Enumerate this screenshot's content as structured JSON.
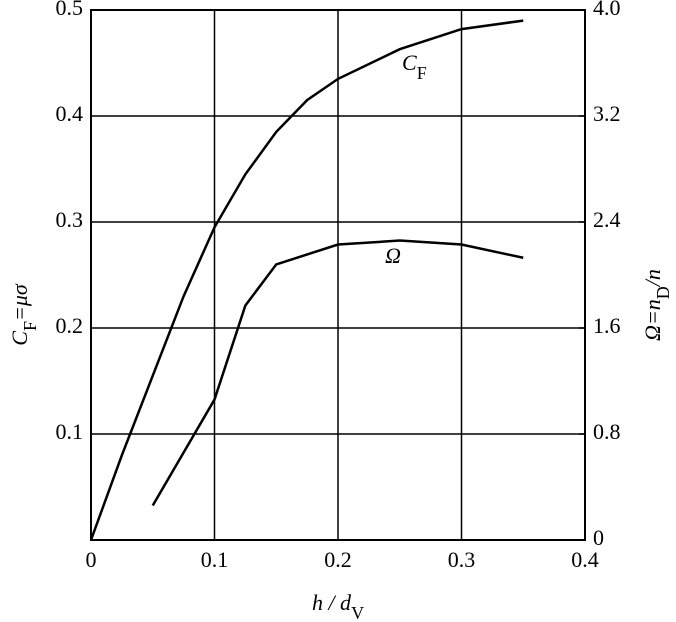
{
  "chart_data": {
    "type": "line",
    "xlabel": [
      "h / d",
      "V"
    ],
    "ylabel": [
      "C",
      "F",
      "=μσ"
    ],
    "y2label": [
      "Ω=n",
      "D",
      "/n"
    ],
    "xlim": [
      0,
      0.4
    ],
    "xticks": [
      0,
      0.1,
      0.2,
      0.3,
      0.4
    ],
    "ylim": [
      0,
      0.5
    ],
    "yticks": [
      0.1,
      0.2,
      0.3,
      0.4,
      0.5
    ],
    "y2lim": [
      0,
      4
    ],
    "y2ticks": [
      0,
      0.8,
      1.6,
      2.4,
      3.2,
      {
        "value": 4,
        "label": "4.0"
      }
    ],
    "grid": true,
    "series": [
      {
        "label": [
          "C",
          "F"
        ],
        "color": "#000000",
        "x": [
          0,
          0.025,
          0.05,
          0.075,
          0.1,
          0.125,
          0.15,
          0.175,
          0.2,
          0.25,
          0.3,
          0.35
        ],
        "values": [
          0,
          0.08,
          0.155,
          0.23,
          0.295,
          0.345,
          0.385,
          0.415,
          0.435,
          0.463,
          0.482,
          0.49
        ]
      },
      {
        "label": [
          "Ω"
        ],
        "color": "#000000",
        "axis": "y2",
        "x": [
          0.05,
          0.075,
          0.1,
          0.125,
          0.15,
          0.2,
          0.25,
          0.3,
          0.35
        ],
        "values": [
          0.26,
          0.66,
          1.06,
          1.77,
          2.08,
          2.23,
          2.26,
          2.23,
          2.13
        ]
      }
    ]
  }
}
